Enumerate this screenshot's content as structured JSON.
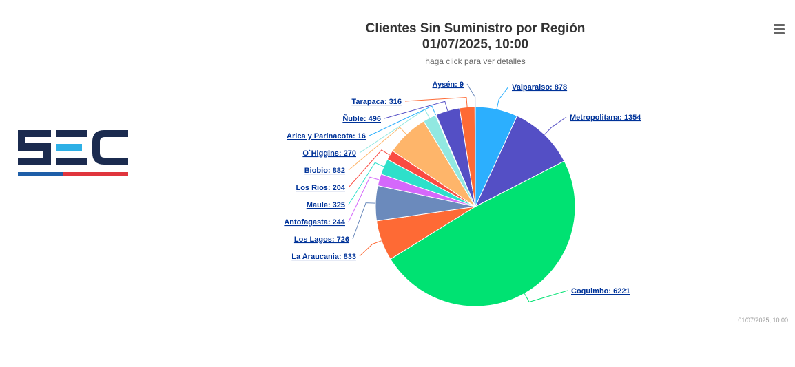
{
  "header": {
    "title_line1": "Clientes Sin Suministro por Región",
    "title_line2": "01/07/2025, 10:00",
    "subtitle": "haga click para ver detalles"
  },
  "logo": {
    "name": "SEC",
    "colors": {
      "dark": "#1B2B4F",
      "accent": "#2DB0E6",
      "stripe_blue": "#1E5EA8",
      "stripe_red": "#E0353D"
    }
  },
  "menu": {
    "icon": "hamburger-menu-icon"
  },
  "credits": {
    "timestamp": "01/07/2025, 10:00"
  },
  "chart_data": {
    "type": "pie",
    "title": "Clientes Sin Suministro por Región",
    "subtitle": "haga click para ver detalles",
    "slices": [
      {
        "name": "Valparaiso",
        "value": 878,
        "color": "#2CAFFE",
        "label": "Valparaiso: 878"
      },
      {
        "name": "Metropolitana",
        "value": 1354,
        "color": "#544FC5",
        "label": "Metropolitana: 1354"
      },
      {
        "name": "Coquimbo",
        "value": 6221,
        "color": "#00E272",
        "label": "Coquimbo: 6221"
      },
      {
        "name": "La Araucania",
        "value": 833,
        "color": "#FE6A35",
        "label": "La Araucania: 833"
      },
      {
        "name": "Los Lagos",
        "value": 726,
        "color": "#6B8ABC",
        "label": "Los Lagos: 726"
      },
      {
        "name": "Antofagasta",
        "value": 244,
        "color": "#D568FB",
        "label": "Antofagasta: 244"
      },
      {
        "name": "Maule",
        "value": 325,
        "color": "#2EE0CA",
        "label": "Maule: 325"
      },
      {
        "name": "Los Rios",
        "value": 204,
        "color": "#FA4B42",
        "label": "Los Rios: 204"
      },
      {
        "name": "Biobio",
        "value": 882,
        "color": "#FEB56A",
        "label": "Biobio: 882"
      },
      {
        "name": "O`Higgins",
        "value": 270,
        "color": "#91E8E1",
        "label": "O`Higgins: 270"
      },
      {
        "name": "Arica y Parinacota",
        "value": 16,
        "color": "#2CAFFE",
        "label": "Arica y Parinacota: 16"
      },
      {
        "name": "Ñuble",
        "value": 496,
        "color": "#544FC5",
        "label": "Ñuble: 496"
      },
      {
        "name": "Tarapaca",
        "value": 316,
        "color": "#FE6A35",
        "label": "Tarapaca: 316"
      },
      {
        "name": "Aysén",
        "value": 9,
        "color": "#6B8ABC",
        "label": "Aysén: 9"
      }
    ]
  }
}
